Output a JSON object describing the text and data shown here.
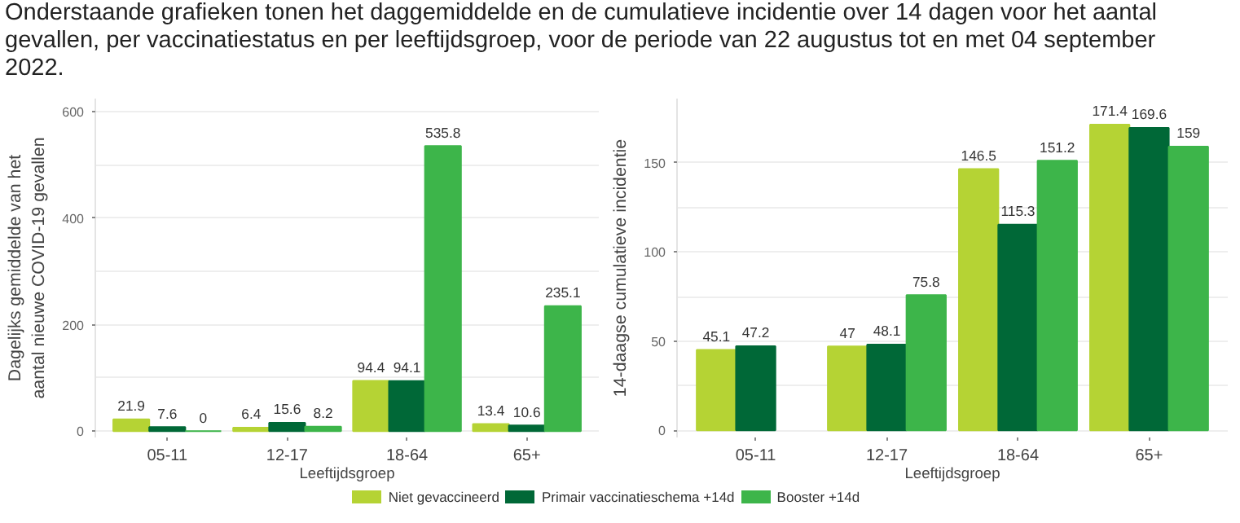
{
  "chart_data": [
    {
      "type": "bar",
      "title": "Onderstaande grafieken tonen het daggemiddelde en de cumulatieve incidentie over 14 dagen voor het aantal gevallen, per vaccinatiestatus en per leeftijdsgroep, voor de periode van 22 augustus tot en met 04 september 2022.",
      "xlabel": "Leeftijdsgroep",
      "ylabel": "Dagelijks gemiddelde van het\naantal nieuwe COVID-19 gevallen",
      "categories": [
        "05-11",
        "12-17",
        "18-64",
        "65+"
      ],
      "series": [
        {
          "name": "Niet gevaccineerd",
          "color": "#b5d334",
          "values": [
            21.9,
            6.4,
            94.4,
            13.4
          ]
        },
        {
          "name": "Primair vaccinatieschema +14d",
          "color": "#006837",
          "values": [
            7.6,
            15.6,
            94.1,
            10.6
          ]
        },
        {
          "name": "Booster +14d",
          "color": "#3db54a",
          "values": [
            0,
            8.2,
            535.8,
            235.1
          ]
        }
      ],
      "ylim": [
        -12,
        625
      ],
      "yticks": [
        0,
        200,
        400,
        600
      ],
      "grid": "y",
      "data_labels": true,
      "legend": "bottom"
    },
    {
      "type": "bar",
      "xlabel": "Leeftijdsgroep",
      "ylabel": "14-daagse cumulatieve incidentie",
      "categories": [
        "05-11",
        "12-17",
        "18-64",
        "65+"
      ],
      "series": [
        {
          "name": "Niet gevaccineerd",
          "color": "#b5d334",
          "values": [
            45.1,
            47,
            146.5,
            171.4
          ]
        },
        {
          "name": "Primair vaccinatieschema +14d",
          "color": "#006837",
          "values": [
            47.2,
            48.1,
            115.3,
            169.6
          ]
        },
        {
          "name": "Booster +14d",
          "color": "#3db54a",
          "values": [
            null,
            75.8,
            151.2,
            159
          ]
        }
      ],
      "ylim": [
        -4,
        186
      ],
      "yticks": [
        0,
        50,
        100,
        150
      ],
      "grid": "y",
      "data_labels": true,
      "legend": "bottom"
    }
  ]
}
